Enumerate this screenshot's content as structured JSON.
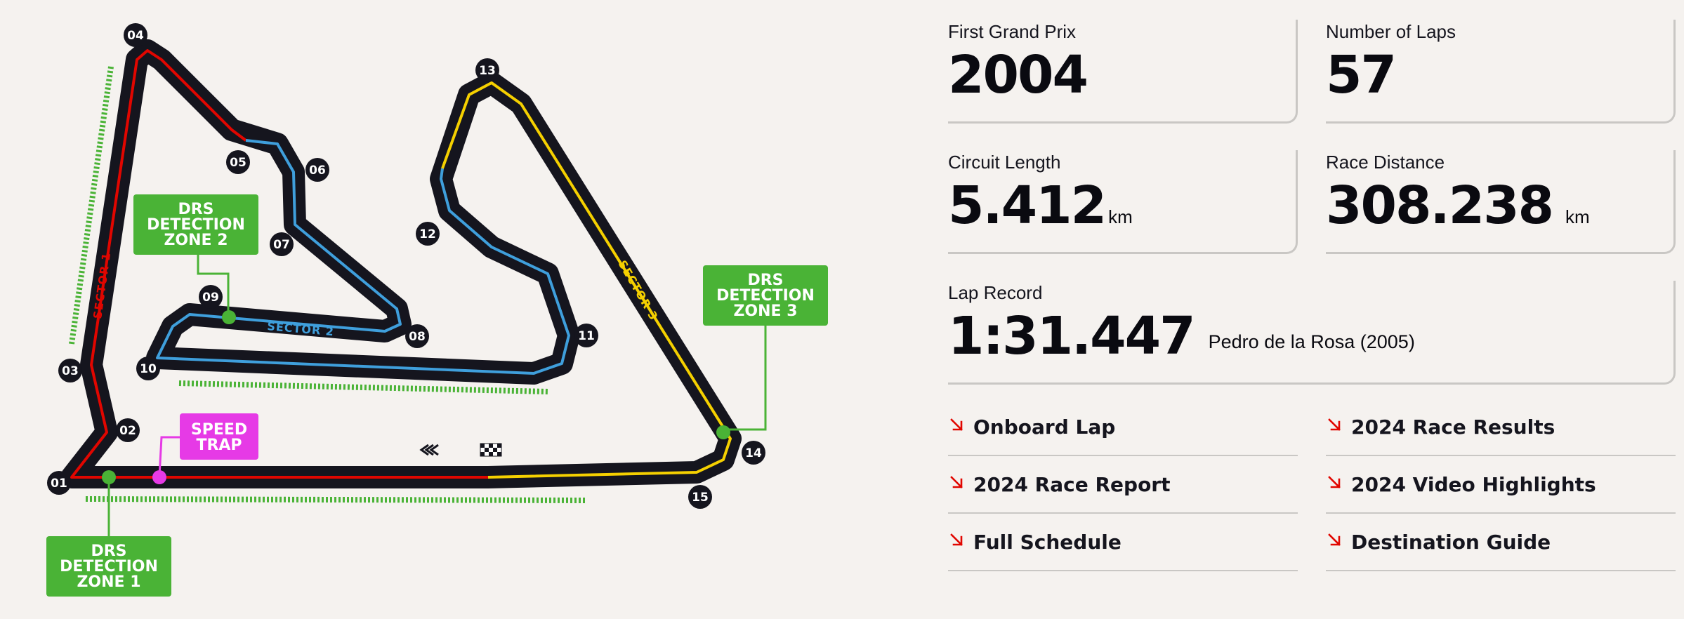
{
  "map": {
    "zones": [
      {
        "id": "zone2",
        "lines": [
          "DRS",
          "DETECTION",
          "ZONE 2"
        ]
      },
      {
        "id": "zone3",
        "lines": [
          "DRS",
          "DETECTION",
          "ZONE 3"
        ]
      },
      {
        "id": "zone1",
        "lines": [
          "DRS",
          "DETECTION",
          "ZONE 1"
        ]
      },
      {
        "id": "speed",
        "lines": [
          "SPEED",
          "TRAP"
        ]
      }
    ],
    "turns": [
      "01",
      "02",
      "03",
      "04",
      "05",
      "06",
      "07",
      "08",
      "09",
      "10",
      "11",
      "12",
      "13",
      "14",
      "15"
    ],
    "sectors": {
      "s1": "SECTOR 1",
      "s2": "SECTOR 2",
      "s3": "SECTOR 3"
    },
    "colors": {
      "track": "#15151e",
      "sector1": "#e10600",
      "sector2": "#3f9fdc",
      "sector3": "#f5d000",
      "drs": "#4ab336",
      "speed_trap": "#e63ae6"
    }
  },
  "stats": {
    "first_gp": {
      "label": "First Grand Prix",
      "value": "2004"
    },
    "laps": {
      "label": "Number of Laps",
      "value": "57"
    },
    "length": {
      "label": "Circuit Length",
      "value": "5.412",
      "unit": "km"
    },
    "distance": {
      "label": "Race Distance",
      "value": "308.238",
      "unit": "km"
    },
    "lap_record": {
      "label": "Lap Record",
      "value": "1:31.447",
      "holder": "Pedro de la Rosa (2005)"
    }
  },
  "links": [
    {
      "label": "Onboard Lap"
    },
    {
      "label": "2024 Race Results"
    },
    {
      "label": "2024 Race Report"
    },
    {
      "label": "2024 Video Highlights"
    },
    {
      "label": "Full Schedule"
    },
    {
      "label": "Destination Guide"
    }
  ]
}
